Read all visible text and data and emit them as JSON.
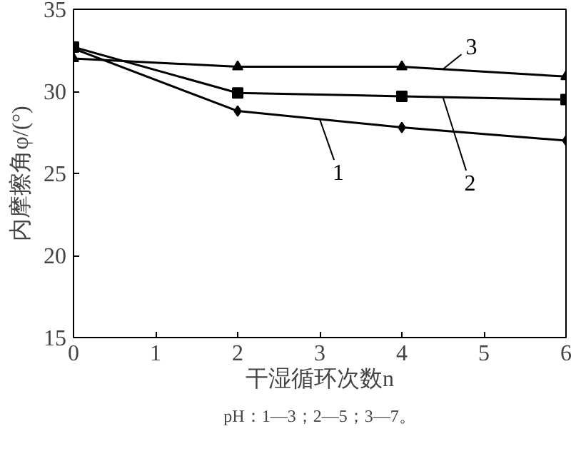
{
  "chart_data": {
    "type": "line",
    "xlabel": "干湿循环次数n",
    "ylabel": "内摩擦角φ/(°)",
    "x": [
      0,
      2,
      4,
      6
    ],
    "series": [
      {
        "name": "1",
        "color": "#000000",
        "marker": "diamond",
        "values": [
          32.6,
          28.8,
          27.8,
          27.0
        ]
      },
      {
        "name": "2",
        "color": "#000000",
        "marker": "square",
        "values": [
          32.7,
          29.9,
          29.7,
          29.5
        ]
      },
      {
        "name": "3",
        "color": "#000000",
        "marker": "triangle",
        "values": [
          32.0,
          31.5,
          31.5,
          30.9
        ]
      }
    ],
    "xlim": [
      0,
      6
    ],
    "xticks": [
      0,
      1,
      2,
      3,
      4,
      5,
      6
    ],
    "ylim": [
      15,
      35
    ],
    "yticks": [
      15,
      20,
      25,
      30,
      35
    ],
    "grid": false,
    "line_style": "solid",
    "annotations": [
      "pH：1—3；2—5；3—7。"
    ]
  }
}
